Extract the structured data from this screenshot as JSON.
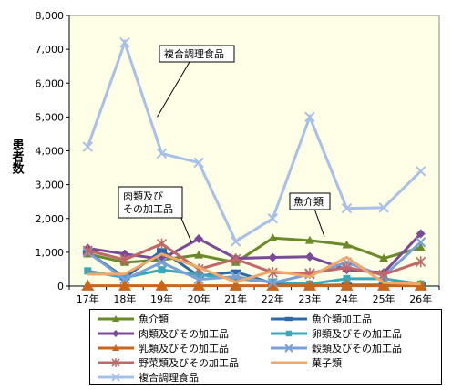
{
  "chart_data": {
    "type": "line",
    "ylabel": "患者数",
    "ylim": [
      0,
      8000
    ],
    "yticks": [
      "0",
      "1,000",
      "2,000",
      "3,000",
      "4,000",
      "5,000",
      "6,000",
      "7,000",
      "8,000"
    ],
    "categories": [
      "17年",
      "18年",
      "19年",
      "20年",
      "21年",
      "22年",
      "23年",
      "24年",
      "25年",
      "26年"
    ],
    "series": [
      {
        "name": "魚介類",
        "color": "#6a8a2a",
        "marker": "triangle",
        "values": [
          950,
          700,
          780,
          920,
          700,
          1420,
          1350,
          1220,
          820,
          1140
        ]
      },
      {
        "name": "魚介類加工品",
        "color": "#2e6aa8",
        "marker": "bar",
        "values": [
          1000,
          250,
          1050,
          300,
          420,
          80,
          20,
          30,
          30,
          40
        ]
      },
      {
        "name": "肉類及びその加工品",
        "color": "#7a4a98",
        "marker": "diamond",
        "values": [
          1120,
          950,
          800,
          1400,
          820,
          850,
          870,
          480,
          400,
          1550
        ]
      },
      {
        "name": "卵類及びその加工品",
        "color": "#3aa8b8",
        "marker": "square",
        "values": [
          450,
          250,
          480,
          340,
          220,
          120,
          60,
          220,
          220,
          60
        ]
      },
      {
        "name": "乳類及びその加工品",
        "color": "#c8661e",
        "marker": "triangle",
        "values": [
          10,
          10,
          10,
          10,
          10,
          10,
          10,
          10,
          10,
          10
        ]
      },
      {
        "name": "穀類及びその加工品",
        "color": "#7aa0d8",
        "marker": "x",
        "values": [
          1000,
          200,
          700,
          200,
          280,
          100,
          350,
          700,
          300,
          1300
        ]
      },
      {
        "name": "野菜類及びその加工品",
        "color": "#c06868",
        "marker": "star",
        "values": [
          1050,
          780,
          1250,
          500,
          800,
          400,
          380,
          550,
          340,
          720
        ]
      },
      {
        "name": "菓子類",
        "color": "#f0a868",
        "marker": "none",
        "values": [
          350,
          360,
          950,
          550,
          120,
          450,
          280,
          850,
          100,
          60
        ]
      },
      {
        "name": "複合調理食品",
        "color": "#a8c0e8",
        "marker": "x",
        "values": [
          4120,
          7200,
          3920,
          3650,
          1320,
          2000,
          5000,
          2300,
          2320,
          3400
        ]
      }
    ],
    "annotations": [
      {
        "text": "複合調理食品"
      },
      {
        "text": "肉類及び\nその加工品"
      },
      {
        "text": "魚介類"
      }
    ],
    "grid": false,
    "legend": "bottom"
  }
}
